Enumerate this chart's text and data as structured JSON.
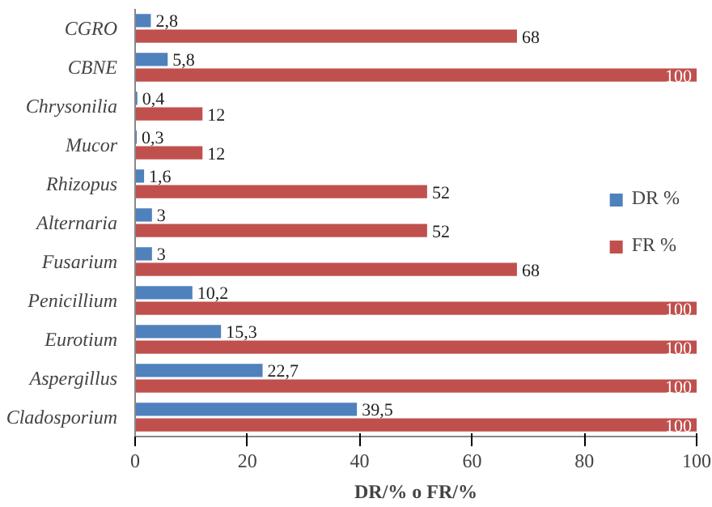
{
  "chart_data": {
    "type": "bar",
    "orientation": "horizontal",
    "xlabel": "DR/% o FR/%",
    "categories": [
      "CGRO",
      "CBNE",
      "Chrysonilia",
      "Mucor",
      "Rhizopus",
      "Alternaria",
      "Fusarium",
      "Penicillium",
      "Eurotium",
      "Aspergillus",
      "Cladosporium"
    ],
    "series": [
      {
        "name": "DR %",
        "color": "#4f81bd",
        "values": [
          2.8,
          5.8,
          0.4,
          0.3,
          1.6,
          3,
          3,
          10.2,
          15.3,
          22.7,
          39.5
        ],
        "value_labels": [
          "2,8",
          "5,8",
          "0,4",
          "0,3",
          "1,6",
          "3",
          "3",
          "10,2",
          "15,3",
          "22,7",
          "39,5"
        ]
      },
      {
        "name": "FR %",
        "color": "#c0504d",
        "values": [
          68,
          100,
          12,
          12,
          52,
          52,
          68,
          100,
          100,
          100,
          100
        ],
        "value_labels": [
          "68",
          "100",
          "12",
          "12",
          "52",
          "52",
          "68",
          "100",
          "100",
          "100",
          "100"
        ]
      }
    ],
    "xlim": [
      0,
      100
    ],
    "xticks": [
      0,
      20,
      40,
      60,
      80,
      100
    ],
    "grid": false,
    "legend": "right"
  }
}
